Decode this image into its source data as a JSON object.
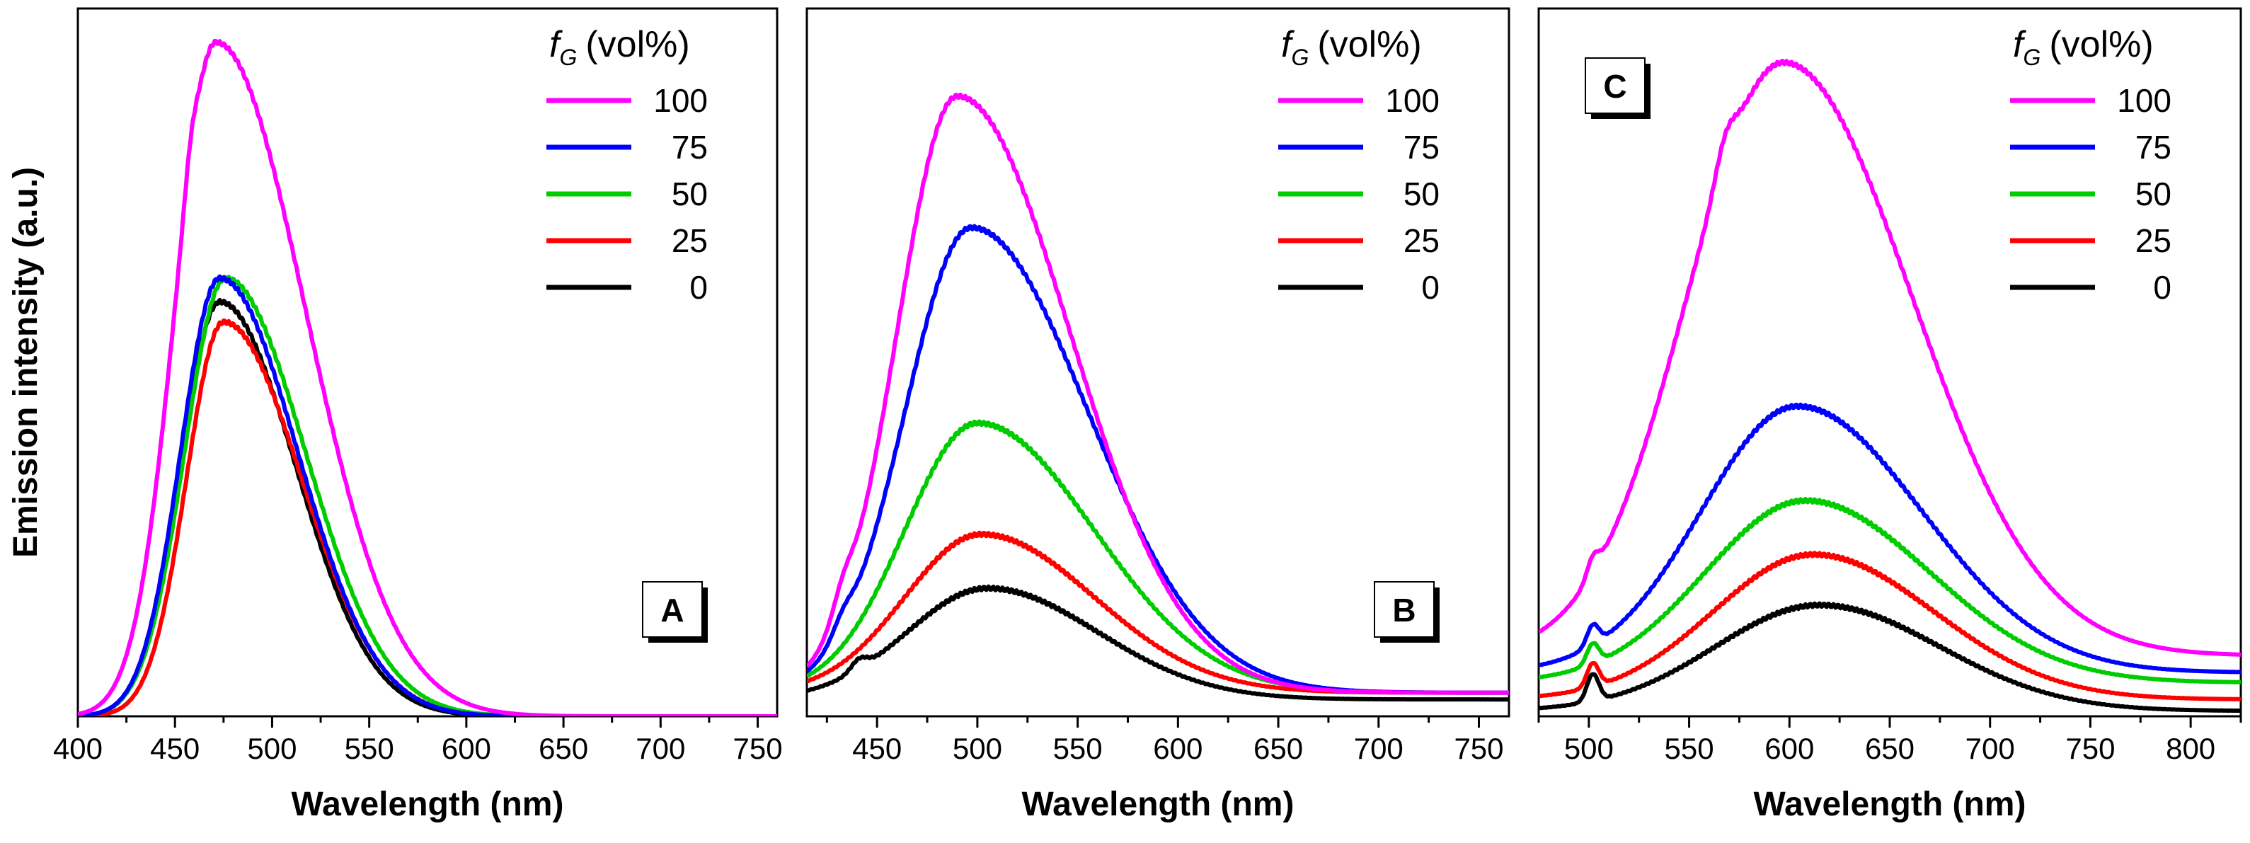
{
  "figure": {
    "ylabel": "Emission intensity (a.u.)",
    "legend_title_symbol": "f",
    "legend_title_subscript": "G",
    "legend_title_unit": "(vol%)"
  },
  "colors": {
    "100": "#ff00ff",
    "75": "#0000ff",
    "50": "#00cc00",
    "25": "#ff0000",
    "0": "#000000"
  },
  "chart_data": [
    {
      "type": "line",
      "panel_label": "A",
      "xlabel": "Wavelength (nm)",
      "ylabel": "Emission intensity (a.u.)",
      "xlim": [
        400,
        760
      ],
      "ylim": [
        0,
        105
      ],
      "xticks": [
        400,
        450,
        500,
        550,
        600,
        650,
        700,
        750
      ],
      "legend_title": "fG (vol%)",
      "series": [
        {
          "name": "100",
          "peak_x": 471,
          "peak_y": 100,
          "left_width": 21,
          "right_width": 46,
          "base": 0,
          "start": 400,
          "end": 760,
          "shoulders": [
            {
              "x": 458,
              "h": 3,
              "w": 3
            }
          ]
        },
        {
          "name": "75",
          "peak_x": 473,
          "peak_y": 65,
          "left_width": 20,
          "right_width": 40,
          "base": 0,
          "start": 400,
          "end": 760,
          "shoulders": []
        },
        {
          "name": "50",
          "peak_x": 476,
          "peak_y": 65,
          "left_width": 21,
          "right_width": 41,
          "base": 0,
          "start": 400,
          "end": 760,
          "shoulders": []
        },
        {
          "name": "25",
          "peak_x": 475,
          "peak_y": 58.5,
          "left_width": 19,
          "right_width": 40,
          "base": 0,
          "start": 400,
          "end": 760,
          "shoulders": []
        },
        {
          "name": "0",
          "peak_x": 473,
          "peak_y": 61.5,
          "left_width": 20,
          "right_width": 39,
          "base": 0,
          "start": 400,
          "end": 760,
          "shoulders": []
        }
      ]
    },
    {
      "type": "line",
      "panel_label": "B",
      "xlabel": "Wavelength (nm)",
      "ylabel": "",
      "xlim": [
        415,
        765
      ],
      "ylim": [
        0,
        105
      ],
      "xticks": [
        450,
        500,
        550,
        600,
        650,
        700,
        750
      ],
      "legend_title": "fG (vol%)",
      "series": [
        {
          "name": "100",
          "peak_x": 490,
          "peak_y": 92,
          "left_width": 30,
          "right_width": 56,
          "base": 3.5,
          "start": 415,
          "end": 765,
          "shoulders": [
            {
              "x": 433,
              "h": 3,
              "w": 5
            }
          ]
        },
        {
          "name": "75",
          "peak_x": 497,
          "peak_y": 72.5,
          "left_width": 33,
          "right_width": 58,
          "base": 3.5,
          "start": 415,
          "end": 765,
          "shoulders": [
            {
              "x": 433,
              "h": 2,
              "w": 5
            }
          ]
        },
        {
          "name": "50",
          "peak_x": 500,
          "peak_y": 43.5,
          "left_width": 36,
          "right_width": 58,
          "base": 3.5,
          "start": 415,
          "end": 765,
          "shoulders": []
        },
        {
          "name": "25",
          "peak_x": 502,
          "peak_y": 27,
          "left_width": 38,
          "right_width": 56,
          "base": 3.5,
          "start": 415,
          "end": 765,
          "shoulders": []
        },
        {
          "name": "0",
          "peak_x": 505,
          "peak_y": 19,
          "left_width": 40,
          "right_width": 55,
          "base": 2.5,
          "start": 415,
          "end": 765,
          "shoulders": [
            {
              "x": 441,
              "h": 1.5,
              "w": 4
            }
          ]
        }
      ]
    },
    {
      "type": "line",
      "panel_label": "C",
      "xlabel": "Wavelength (nm)",
      "ylabel": "",
      "xlim": [
        475,
        825
      ],
      "ylim": [
        0,
        105
      ],
      "xticks": [
        500,
        550,
        600,
        650,
        700,
        750,
        800
      ],
      "legend_title": "fG (vol%)",
      "series": [
        {
          "name": "100",
          "peak_x": 597,
          "peak_y": 97,
          "left_width": 48,
          "right_width": 64,
          "base": 9,
          "start": 475,
          "end": 825,
          "shoulders": [
            {
              "x": 502,
              "h": 2.5,
              "w": 3
            },
            {
              "x": 568,
              "h": 4,
              "w": 5
            }
          ]
        },
        {
          "name": "75",
          "peak_x": 604,
          "peak_y": 46,
          "left_width": 48,
          "right_width": 62,
          "base": 6.5,
          "start": 475,
          "end": 825,
          "shoulders": [
            {
              "x": 502,
              "h": 3,
              "w": 3
            }
          ]
        },
        {
          "name": "50",
          "peak_x": 608,
          "peak_y": 32,
          "left_width": 50,
          "right_width": 62,
          "base": 5,
          "start": 475,
          "end": 825,
          "shoulders": [
            {
              "x": 502,
              "h": 3,
              "w": 3
            }
          ]
        },
        {
          "name": "25",
          "peak_x": 612,
          "peak_y": 24,
          "left_width": 50,
          "right_width": 60,
          "base": 2.5,
          "start": 475,
          "end": 825,
          "shoulders": [
            {
              "x": 502,
              "h": 3.5,
              "w": 3
            }
          ]
        },
        {
          "name": "0",
          "peak_x": 615,
          "peak_y": 16.5,
          "left_width": 52,
          "right_width": 60,
          "base": 0.8,
          "start": 475,
          "end": 825,
          "shoulders": [
            {
              "x": 502,
              "h": 4,
              "w": 3
            }
          ]
        }
      ]
    }
  ]
}
